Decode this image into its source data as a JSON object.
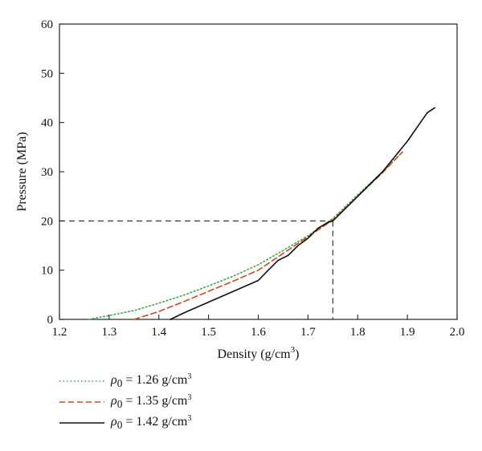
{
  "chart_data": {
    "type": "line",
    "title": "",
    "xlabel_prefix": "Density (g/cm",
    "xlabel_sup": "3",
    "xlabel_suffix": ")",
    "ylabel": "Pressure (MPa)",
    "xlim": [
      1.2,
      2.0
    ],
    "ylim": [
      0,
      60
    ],
    "xticks": [
      "1.2",
      "1.3",
      "1.4",
      "1.5",
      "1.6",
      "1.7",
      "1.8",
      "1.9",
      "2.0"
    ],
    "yticks": [
      "0",
      "10",
      "20",
      "30",
      "40",
      "50",
      "60"
    ],
    "grid": false,
    "legend_position": "below",
    "reference_lines": {
      "x": 1.75,
      "y": 20
    },
    "series": [
      {
        "name": "ρ0 = 1.26 g/cm3",
        "legend_symbol": "ρ",
        "legend_sub": "0",
        "legend_value": " = 1.26 g/cm",
        "legend_sup": "3",
        "style": "dotted",
        "color": "#3aa84a",
        "x": [
          1.26,
          1.3,
          1.35,
          1.4,
          1.45,
          1.5,
          1.55,
          1.6,
          1.65,
          1.7,
          1.75,
          1.8,
          1.85,
          1.89
        ],
        "y": [
          0,
          0.8,
          1.8,
          3.3,
          4.9,
          6.8,
          8.8,
          11.1,
          14.0,
          17.0,
          20.5,
          25.3,
          30.0,
          34.0
        ]
      },
      {
        "name": "ρ0 = 1.35 g/cm3",
        "legend_symbol": "ρ",
        "legend_sub": "0",
        "legend_value": " = 1.35 g/cm",
        "legend_sup": "3",
        "style": "dashed",
        "color": "#d9441c",
        "x": [
          1.35,
          1.4,
          1.45,
          1.5,
          1.55,
          1.6,
          1.65,
          1.7,
          1.75,
          1.8,
          1.85,
          1.89
        ],
        "y": [
          0,
          1.6,
          3.6,
          5.7,
          7.8,
          10.0,
          13.4,
          16.8,
          20.2,
          25.0,
          29.8,
          34.0
        ]
      },
      {
        "name": "ρ0 = 1.42 g/cm3",
        "legend_symbol": "ρ",
        "legend_sub": "0",
        "legend_value": " = 1.42 g/cm",
        "legend_sup": "3",
        "style": "solid",
        "color": "#111111",
        "x": [
          1.423,
          1.45,
          1.5,
          1.55,
          1.6,
          1.62,
          1.64,
          1.66,
          1.68,
          1.7,
          1.72,
          1.74,
          1.75,
          1.77,
          1.8,
          1.85,
          1.9,
          1.94,
          1.955
        ],
        "y": [
          0,
          1.3,
          3.5,
          5.7,
          7.9,
          10.0,
          12.0,
          13.0,
          15.0,
          16.5,
          18.5,
          19.7,
          20.0,
          22.0,
          25.0,
          30.0,
          36.2,
          42.0,
          43.0
        ]
      }
    ]
  }
}
